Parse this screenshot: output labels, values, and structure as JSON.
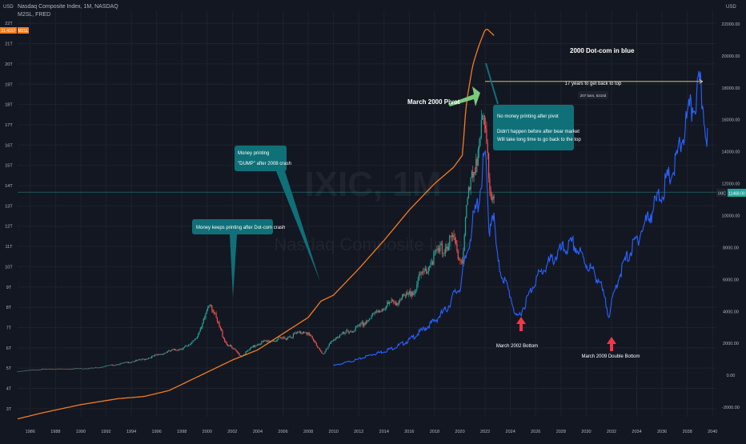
{
  "legend": {
    "main_symbol": "Nasdaq Composite Index, 1M, NASDAQ",
    "secondary_symbol": "M2SL, FRED"
  },
  "left_axis": {
    "unit": "USD",
    "labels": [
      "22T",
      "21T",
      "20T",
      "19T",
      "18T",
      "17T",
      "16T",
      "15T",
      "14T",
      "13T",
      "12T",
      "11T",
      "10T",
      "9T",
      "8T",
      "7T",
      "6T",
      "5T",
      "4T",
      "3T"
    ],
    "badge_values": [
      "21.4157",
      "M2SL"
    ]
  },
  "right_axis": {
    "unit": "USD",
    "labels": [
      "22000.00",
      "20000.00",
      "18000.00",
      "16000.00",
      "14000.00",
      "12000.00",
      "10000.00",
      "8000.00",
      "6000.00",
      "4000.00",
      "2000.00",
      "0.00",
      "-2000.00"
    ],
    "badge_symbol": "IXIC",
    "badge_value": "11468.00"
  },
  "time_axis": {
    "labels": [
      "1986",
      "1988",
      "1990",
      "1992",
      "1994",
      "1996",
      "1998",
      "2000",
      "2002",
      "2004",
      "2006",
      "2008",
      "2010",
      "2012",
      "2014",
      "2016",
      "2018",
      "2020",
      "2022",
      "2024",
      "2026",
      "2028",
      "2030",
      "2032",
      "2034",
      "2036",
      "2038",
      "2040"
    ]
  },
  "watermark": {
    "ticker": "IXIC, 1M",
    "name": "Nasdaq Composite Index"
  },
  "annotations": {
    "title": "2000 Dot-com in blue",
    "pivot": "March 2000 Pivot",
    "callout_no_printing": [
      "No money printing after pivot",
      "",
      "Didn't happen before after bear market",
      "Will take long time to go back to the top"
    ],
    "callout_dump": [
      "Money printing",
      "\"DUMP\" after 2008 crash"
    ],
    "callout_dotcom": "Money keeps printing after Dot-com crash",
    "years_back": "17 years to get back to top",
    "bars_info": "207 bars, 6210d",
    "bottom_2002": "March 2002 Bottom",
    "bottom_2009": "March 2009 Double Bottom"
  },
  "colors": {
    "background": "#131722",
    "grid": "#1e222d",
    "m2": "#f57c1f",
    "ixic_up": "#26a69a",
    "ixic_down": "#ef5350",
    "overlay_2000": "#2962ff",
    "callout": "#0f7078",
    "pivot_arrow": "#7bc97d",
    "bottom_arrow": "#f23645",
    "horizontal_line": "#f5d97b",
    "ixic_price_line": "#26a69a"
  },
  "chart_data": {
    "type": "line",
    "series": [
      {
        "name": "M2SL, FRED",
        "axis": "left",
        "unit": "T USD",
        "x": [
          1985.0,
          1987,
          1990,
          1993,
          1995,
          1997,
          1999,
          2000,
          2002,
          2004,
          2006,
          2008,
          2009,
          2010,
          2012,
          2014,
          2016,
          2018,
          2019.5,
          2020.2,
          2020.5,
          2021,
          2021.5,
          2022.0,
          2022.2,
          2022.7
        ],
        "values": [
          2.5,
          2.8,
          3.2,
          3.5,
          3.6,
          3.9,
          4.5,
          4.8,
          5.4,
          5.9,
          6.7,
          7.5,
          8.3,
          8.6,
          9.9,
          11.3,
          12.8,
          14.1,
          14.9,
          15.5,
          18.0,
          19.9,
          20.9,
          21.7,
          21.7,
          21.4
        ]
      },
      {
        "name": "Nasdaq Composite Index, 1M, NASDAQ",
        "axis": "right",
        "unit": "USD",
        "type": "candlestick",
        "x": [
          1985.0,
          1987,
          1989,
          1991,
          1993,
          1995,
          1997,
          1998.5,
          1999.5,
          2000.2,
          2000.7,
          2001.5,
          2002.7,
          2004,
          2006,
          2007.8,
          2009.2,
          2010,
          2012,
          2014,
          2016,
          2018,
          2019.5,
          2020.2,
          2020.5,
          2021.5,
          2021.9,
          2022.4,
          2022.7
        ],
        "values": [
          250,
          380,
          400,
          450,
          700,
          1000,
          1500,
          1800,
          2800,
          4700,
          3500,
          2000,
          1200,
          2000,
          2300,
          2800,
          1300,
          2300,
          3000,
          4300,
          5000,
          7500,
          8500,
          7000,
          10500,
          14500,
          16000,
          11500,
          11500
        ]
      },
      {
        "name": "2000 Dot-com in blue",
        "axis": "right",
        "unit": "USD",
        "x": [
          2010.0,
          2011,
          2012,
          2013,
          2014,
          2015,
          2016,
          2017,
          2018,
          2019,
          2019.5,
          2020,
          2020.6,
          2021.0,
          2021.5,
          2022.0,
          2022.3,
          2022.6,
          2023,
          2024.0,
          2024.5,
          2025,
          2026,
          2027,
          2028,
          2029,
          2030,
          2031,
          2031.8,
          2032.5,
          2033,
          2034,
          2035,
          2036,
          2037,
          2038,
          2039,
          2039.6
        ],
        "values": [
          600,
          800,
          1000,
          1300,
          1500,
          1800,
          2200,
          2800,
          3400,
          4200,
          5000,
          5500,
          7800,
          9500,
          11000,
          14000,
          9000,
          10500,
          7000,
          5000,
          3500,
          4200,
          6000,
          7000,
          7800,
          8200,
          7000,
          6000,
          3800,
          6000,
          7000,
          8500,
          10000,
          11500,
          13000,
          16000,
          18000,
          15000
        ]
      }
    ],
    "reference_line": {
      "label": "17 years to get back to top",
      "value": 18400,
      "x_start": 2022.0,
      "x_end": 2039.2
    },
    "current_price": 11468.0,
    "left_ylim": [
      2.6,
      22.6
    ],
    "right_ylim": [
      -2600,
      22800
    ],
    "xlim": [
      1985.0,
      2040.3
    ],
    "grid": true,
    "legend_position": "top-left"
  }
}
